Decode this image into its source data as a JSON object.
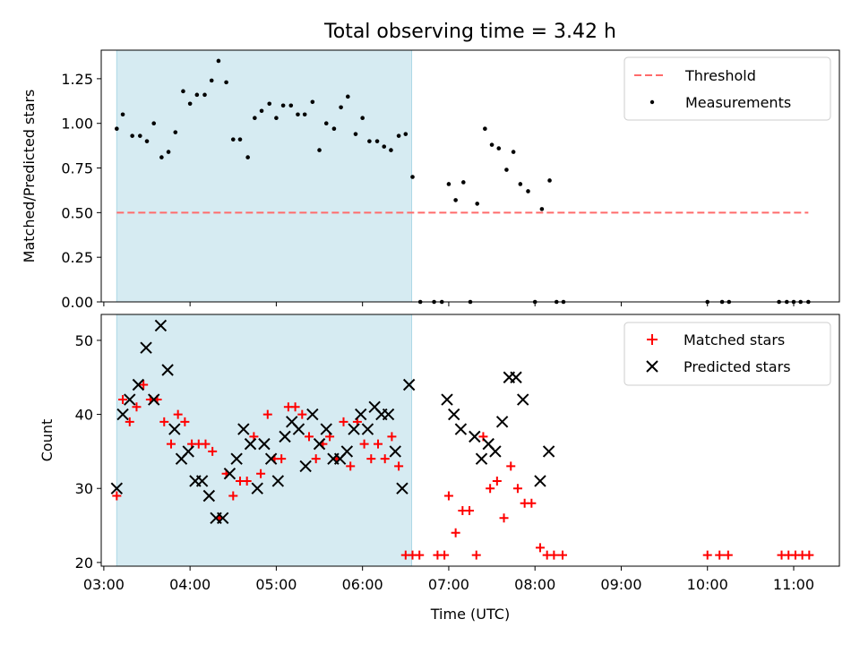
{
  "figure": {
    "title": "Total observing time = 3.42 h",
    "xlabel": "Time (UTC)",
    "x_ticks": [
      "03:00",
      "04:00",
      "05:00",
      "06:00",
      "07:00",
      "08:00",
      "09:00",
      "10:00",
      "11:00"
    ],
    "x_range_hours": [
      2.97,
      11.53
    ],
    "shaded_interval_hours": [
      3.15,
      6.57
    ],
    "colors": {
      "shade": "#add8e6",
      "threshold": "#ff6b6b",
      "matched": "#ff0000",
      "predicted": "#000000",
      "measurements": "#000000"
    }
  },
  "chart_data": [
    {
      "type": "scatter",
      "ylabel": "Matched/Predicted stars",
      "ylim": [
        0,
        1.41
      ],
      "y_ticks": [
        "0.00",
        "0.25",
        "0.50",
        "0.75",
        "1.00",
        "1.25"
      ],
      "legend_position": "top-right",
      "threshold": {
        "name": "Threshold",
        "value": 0.5,
        "x_start": 3.15,
        "x_end": 11.17
      },
      "series": [
        {
          "name": "Measurements",
          "x": [
            3.15,
            3.22,
            3.33,
            3.42,
            3.5,
            3.58,
            3.67,
            3.75,
            3.83,
            3.92,
            4.0,
            4.08,
            4.17,
            4.25,
            4.33,
            4.42,
            4.5,
            4.58,
            4.67,
            4.75,
            4.83,
            4.92,
            5.0,
            5.08,
            5.17,
            5.25,
            5.33,
            5.42,
            5.5,
            5.58,
            5.67,
            5.75,
            5.83,
            5.92,
            6.0,
            6.08,
            6.17,
            6.25,
            6.33,
            6.42,
            6.5,
            6.58,
            6.67,
            6.83,
            6.92,
            7.0,
            7.08,
            7.17,
            7.25,
            7.33,
            7.42,
            7.5,
            7.58,
            7.67,
            7.75,
            7.83,
            7.92,
            8.0,
            8.08,
            8.17,
            8.25,
            8.33,
            10.0,
            10.17,
            10.25,
            10.83,
            10.92,
            11.0,
            11.08,
            11.17
          ],
          "values": [
            0.97,
            1.05,
            0.93,
            0.93,
            0.9,
            1.0,
            0.81,
            0.84,
            0.95,
            1.18,
            1.11,
            1.16,
            1.16,
            1.24,
            1.35,
            1.23,
            0.91,
            0.91,
            0.81,
            1.03,
            1.07,
            1.11,
            1.03,
            1.1,
            1.1,
            1.05,
            1.05,
            1.12,
            0.85,
            1.0,
            0.97,
            1.09,
            1.15,
            0.94,
            1.03,
            0.9,
            0.9,
            0.87,
            0.85,
            0.93,
            0.94,
            0.7,
            0.0,
            0.0,
            0.0,
            0.66,
            0.57,
            0.67,
            0.0,
            0.55,
            0.97,
            0.88,
            0.86,
            0.74,
            0.84,
            0.66,
            0.62,
            0.0,
            0.52,
            0.68,
            0.0,
            0.0,
            0.0,
            0.0,
            0.0,
            0.0,
            0.0,
            0.0,
            0.0,
            0.0
          ]
        }
      ]
    },
    {
      "type": "scatter",
      "ylabel": "Count",
      "ylim": [
        19.5,
        53.5
      ],
      "y_ticks": [
        "20",
        "30",
        "40",
        "50"
      ],
      "legend_position": "top-right",
      "series": [
        {
          "name": "Matched stars",
          "marker": "plus",
          "x": [
            3.15,
            3.22,
            3.3,
            3.38,
            3.46,
            3.54,
            3.62,
            3.7,
            3.78,
            3.86,
            3.94,
            4.02,
            4.1,
            4.18,
            4.26,
            4.34,
            4.42,
            4.5,
            4.58,
            4.66,
            4.74,
            4.82,
            4.9,
            4.98,
            5.06,
            5.14,
            5.22,
            5.3,
            5.38,
            5.46,
            5.54,
            5.62,
            5.7,
            5.78,
            5.86,
            5.94,
            6.02,
            6.1,
            6.18,
            6.26,
            6.34,
            6.42,
            6.5,
            6.58,
            6.66,
            6.87,
            6.95,
            7.0,
            7.08,
            7.16,
            7.24,
            7.32,
            7.4,
            7.48,
            7.56,
            7.64,
            7.72,
            7.8,
            7.88,
            7.96,
            8.06,
            8.14,
            8.22,
            8.32,
            10.0,
            10.14,
            10.24,
            10.86,
            10.94,
            11.02,
            11.1,
            11.18
          ],
          "values": [
            29,
            42,
            39,
            41,
            44,
            42,
            42,
            39,
            36,
            40,
            39,
            36,
            36,
            36,
            35,
            26,
            32,
            29,
            31,
            31,
            37,
            32,
            40,
            34,
            34,
            41,
            41,
            40,
            37,
            34,
            36,
            37,
            34,
            39,
            33,
            39,
            36,
            34,
            36,
            34,
            37,
            33,
            21,
            21,
            21,
            21,
            21,
            29,
            24,
            27,
            27,
            21,
            37,
            30,
            31,
            26,
            33,
            30,
            28,
            28,
            22,
            21,
            21,
            21,
            21,
            21,
            21,
            21,
            21,
            21,
            21,
            21
          ]
        },
        {
          "name": "Predicted stars",
          "marker": "x",
          "x": [
            3.15,
            3.22,
            3.3,
            3.4,
            3.49,
            3.58,
            3.66,
            3.74,
            3.82,
            3.9,
            3.98,
            4.06,
            4.14,
            4.22,
            4.3,
            4.38,
            4.46,
            4.54,
            4.62,
            4.7,
            4.78,
            4.86,
            4.94,
            5.02,
            5.1,
            5.18,
            5.26,
            5.34,
            5.42,
            5.5,
            5.58,
            5.66,
            5.74,
            5.82,
            5.9,
            5.98,
            6.06,
            6.14,
            6.22,
            6.3,
            6.38,
            6.46,
            6.54,
            6.98,
            7.06,
            7.14,
            7.3,
            7.38,
            7.46,
            7.54,
            7.62,
            7.7,
            7.78,
            7.86,
            8.06,
            8.16
          ],
          "values": [
            30,
            40,
            42,
            44,
            49,
            42,
            52,
            46,
            38,
            34,
            35,
            31,
            31,
            29,
            26,
            26,
            32,
            34,
            38,
            36,
            30,
            36,
            34,
            31,
            37,
            39,
            38,
            33,
            40,
            36,
            38,
            34,
            34,
            35,
            38,
            40,
            38,
            41,
            40,
            40,
            35,
            30,
            44,
            42,
            40,
            38,
            37,
            34,
            36,
            35,
            39,
            45,
            45,
            42,
            31,
            35
          ]
        }
      ]
    }
  ]
}
